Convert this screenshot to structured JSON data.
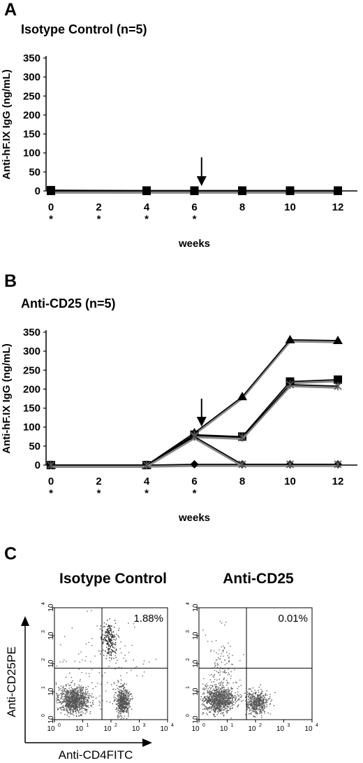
{
  "panelA": {
    "letter": "A",
    "title": "Isotype Control (n=5)",
    "chart_data": {
      "type": "line",
      "ylabel": "Anti-hF.IX IgG (ng/mL)",
      "xlabel": "weeks",
      "ylim": [
        0,
        350
      ],
      "yticks": [
        "0",
        "50",
        "100",
        "150",
        "200",
        "250",
        "300",
        "350"
      ],
      "xticks": [
        "0",
        "2",
        "4",
        "6",
        "8",
        "10",
        "12"
      ],
      "injection_weeks": [
        0,
        2,
        4,
        6
      ],
      "injection_mark": "*",
      "arrow_week": 6.3,
      "series": [
        {
          "marker": "square",
          "x": [
            0,
            4,
            6,
            8,
            10,
            12
          ],
          "y": [
            2,
            1,
            1,
            1,
            1,
            1
          ]
        },
        {
          "marker": "square",
          "x": [
            0,
            4,
            6,
            8,
            10,
            12
          ],
          "y": [
            1,
            0,
            0,
            0,
            0,
            0
          ]
        },
        {
          "marker": "square",
          "x": [
            0,
            4,
            6,
            8,
            10,
            12
          ],
          "y": [
            0,
            0,
            0,
            0,
            0,
            0
          ]
        },
        {
          "marker": "square",
          "x": [
            0,
            4,
            6,
            8,
            10,
            12
          ],
          "y": [
            0,
            0,
            0,
            0,
            0,
            0
          ]
        },
        {
          "marker": "square",
          "x": [
            0,
            4,
            6,
            8,
            10,
            12
          ],
          "y": [
            0,
            0,
            0,
            0,
            0,
            0
          ]
        }
      ]
    }
  },
  "panelB": {
    "letter": "B",
    "title": "Anti-CD25 (n=5)",
    "chart_data": {
      "type": "line",
      "ylabel": "Anti-hF.IX IgG (ng/mL)",
      "xlabel": "weeks",
      "ylim": [
        0,
        350
      ],
      "yticks": [
        "0",
        "50",
        "100",
        "150",
        "200",
        "250",
        "300",
        "350"
      ],
      "xticks": [
        "0",
        "2",
        "4",
        "6",
        "8",
        "10",
        "12"
      ],
      "injection_weeks": [
        0,
        2,
        4,
        6
      ],
      "injection_mark": "*",
      "arrow_week": 6.3,
      "series": [
        {
          "marker": "triangle",
          "x": [
            0,
            4,
            6,
            8,
            10,
            12
          ],
          "y": [
            0,
            0,
            85,
            180,
            330,
            328
          ]
        },
        {
          "marker": "square",
          "x": [
            0,
            4,
            6,
            8,
            10,
            12
          ],
          "y": [
            0,
            0,
            80,
            75,
            220,
            225
          ]
        },
        {
          "marker": "x",
          "x": [
            0,
            4,
            6,
            8,
            10,
            12
          ],
          "y": [
            0,
            0,
            78,
            73,
            212,
            208
          ]
        },
        {
          "marker": "diamond",
          "x": [
            0,
            4,
            6,
            8,
            10,
            12
          ],
          "y": [
            0,
            0,
            2,
            2,
            2,
            2
          ]
        },
        {
          "marker": "x",
          "x": [
            0,
            4,
            6,
            8,
            10,
            12
          ],
          "y": [
            0,
            0,
            75,
            2,
            2,
            2
          ]
        }
      ]
    }
  },
  "panelC": {
    "letter": "C",
    "ylabel": "Anti-CD25PE",
    "xlabel": "Anti-CD4FITC",
    "tick_labels": [
      "10",
      "10",
      "10",
      "10",
      "10"
    ],
    "tick_exponents": [
      "0",
      "1",
      "2",
      "3",
      "4"
    ],
    "plots": [
      {
        "title": "Isotype Control",
        "percent": "1.88%"
      },
      {
        "title": "Anti-CD25",
        "percent": "0.01%"
      }
    ]
  }
}
